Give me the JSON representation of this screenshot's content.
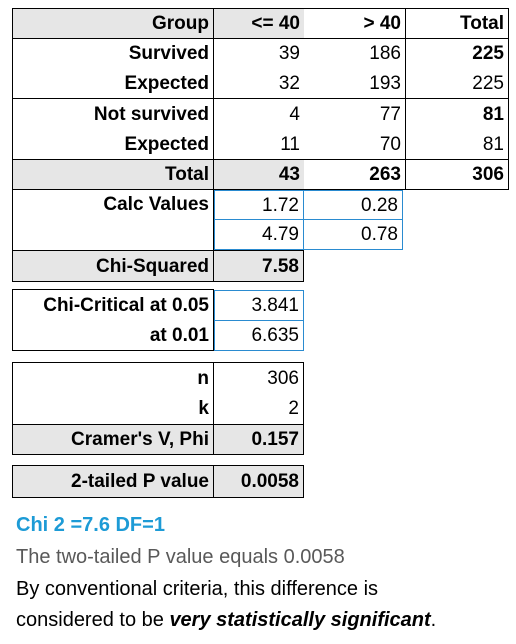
{
  "table": {
    "header": {
      "group": "Group",
      "col1": "<= 40",
      "col2": "> 40",
      "total": "Total"
    },
    "survived": {
      "label": "Survived",
      "c1": "39",
      "c2": "186",
      "total": "225"
    },
    "survived_expected": {
      "label": "Expected",
      "c1": "32",
      "c2": "193",
      "total": "225"
    },
    "not_survived": {
      "label": "Not survived",
      "c1": "4",
      "c2": "77",
      "total": "81"
    },
    "not_survived_expected": {
      "label": "Expected",
      "c1": "11",
      "c2": "70",
      "total": "81"
    },
    "totals": {
      "label": "Total",
      "c1": "43",
      "c2": "263",
      "total": "306"
    },
    "calc_values": {
      "label": "Calc Values",
      "row1": [
        "1.72",
        "0.28"
      ],
      "row2": [
        "4.79",
        "0.78"
      ]
    },
    "chi_squared": {
      "label": "Chi-Squared",
      "value": "7.58"
    }
  },
  "critical": {
    "at_005_label": "Chi-Critical at 0.05",
    "at_005_value": "3.841",
    "at_001_label": "at 0.01",
    "at_001_value": "6.635"
  },
  "stats": {
    "n_label": "n",
    "n_value": "306",
    "k_label": "k",
    "k_value": "2",
    "cramer_label": "Cramer's V,  Phi",
    "cramer_value": "0.157"
  },
  "pvalue": {
    "label": "2-tailed P value",
    "value": "0.0058"
  },
  "summary": {
    "chi_line": "Chi 2 =7.6 DF=1",
    "p_line": "The two-tailed P value equals 0.0058",
    "conclusion_start": "By conventional criteria, this difference is",
    "conclusion_prefix": "considered to be ",
    "conclusion_emphasis": "very statistically significant",
    "conclusion_end": "."
  },
  "colors": {
    "blue_text": "#1d9bd6",
    "gray_text": "#595959",
    "cell_border_blue": "#2a8bd0",
    "shade": "#e6e6e6"
  }
}
